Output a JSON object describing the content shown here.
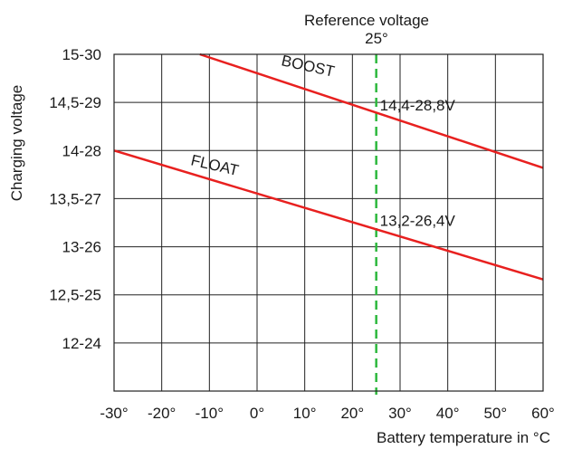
{
  "chart_data": {
    "type": "line",
    "title": "",
    "xlabel": "Battery temperature in °C",
    "ylabel": "Charging voltage",
    "x_ticks": [
      -30,
      -20,
      -10,
      0,
      10,
      20,
      30,
      40,
      50,
      60
    ],
    "x_tick_labels": [
      "-30°",
      "-20°",
      "-10°",
      "0°",
      "10°",
      "20°",
      "30°",
      "40°",
      "50°",
      "60°"
    ],
    "y_ticks": [
      15,
      14.5,
      14,
      13.5,
      13,
      12.5,
      12
    ],
    "y_tick_labels": [
      "15-30",
      "14,5-29",
      "14-28",
      "13,5-27",
      "13-26",
      "12,5-25",
      "12-24"
    ],
    "xlim": [
      -30,
      60
    ],
    "ylim": [
      11.5,
      15
    ],
    "grid": true,
    "series": [
      {
        "name": "BOOST",
        "color": "#e8201f",
        "x": [
          -12,
          60
        ],
        "y": [
          15.0,
          13.82
        ]
      },
      {
        "name": "FLOAT",
        "color": "#e8201f",
        "x": [
          -30,
          60
        ],
        "y": [
          14.0,
          12.66
        ]
      }
    ],
    "reference_line": {
      "x": 25,
      "label_top": "Reference voltage",
      "label_value": "25°",
      "color": "#2db83d"
    },
    "annotations": [
      {
        "text": "14,4-28,8V",
        "x": 25,
        "y": 14.4
      },
      {
        "text": "13,2-26,4V",
        "x": 25,
        "y": 13.2
      }
    ]
  }
}
